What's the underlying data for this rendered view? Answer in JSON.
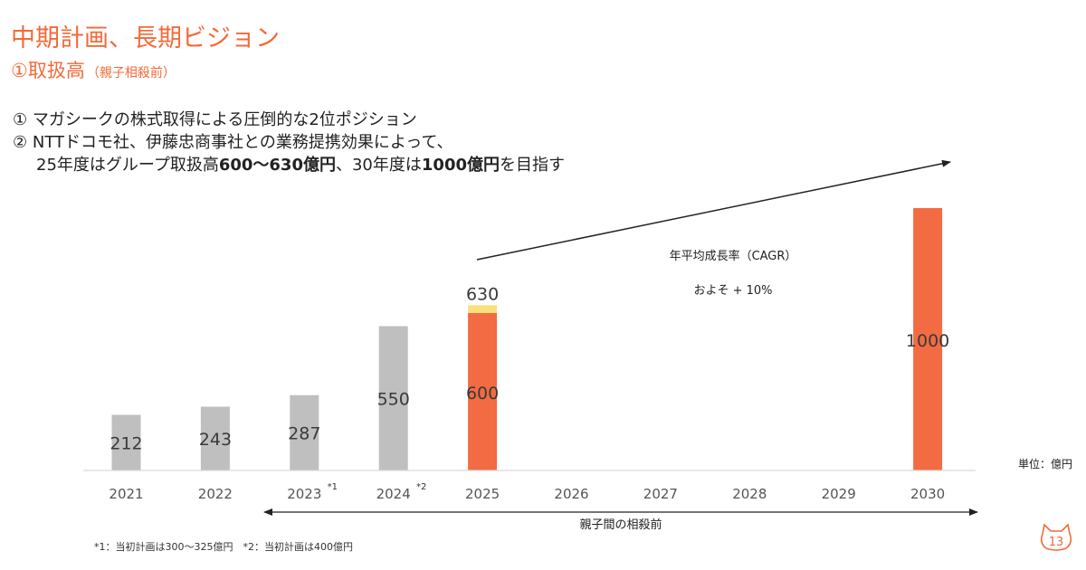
{
  "header": {
    "title": "中期計画、長期ビジョン",
    "subtitle_main": "①取扱高",
    "subtitle_note": "（親子相殺前）"
  },
  "bullets": {
    "line1": "① マガシークの株式取得による圧倒的な2位ポジション",
    "line2": "② NTTドコモ社、伊藤忠商事社との業務提携効果によって、",
    "line3_a": "25年度はグループ取扱高",
    "line3_b": "600〜630億円",
    "line3_c": "、30年度は",
    "line3_d": "1000億円",
    "line3_e": "を目指す"
  },
  "chart_data": {
    "type": "bar",
    "categories": [
      "2021",
      "2022",
      "2023",
      "2024",
      "2025",
      "2026",
      "2027",
      "2028",
      "2029",
      "2030"
    ],
    "category_notes": {
      "2023": "*1",
      "2024": "*2"
    },
    "series": [
      {
        "values": [
          212,
          243,
          287,
          550,
          600,
          null,
          null,
          null,
          null,
          1000
        ]
      },
      {
        "values": [
          null,
          null,
          null,
          null,
          30,
          null,
          null,
          null,
          null,
          null
        ]
      }
    ],
    "value_labels": [
      "212",
      "243",
      "287",
      "550",
      "600",
      "",
      "",
      "",
      "",
      "1000"
    ],
    "top_label_2025": "630",
    "ylim": [
      0,
      1000
    ],
    "colors": {
      "actual": "#bfbfbf",
      "plan": "#f26b43",
      "plan_range": "#fbe17b",
      "accent": "#f26a38"
    },
    "unit_label": "単位：億円",
    "cagr_label": "年平均成長率（CAGR）",
    "cagr_value": "およそ + 10%",
    "bracket_label": "親子間の相殺前"
  },
  "footnotes": {
    "text": "*1：当初計画は300〜325億円　*2：当初計画は400億円"
  },
  "page": {
    "number": "13"
  }
}
